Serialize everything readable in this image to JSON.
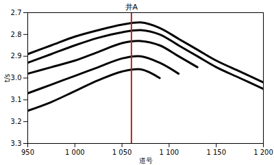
{
  "chart_data": {
    "type": "line",
    "title": "井A",
    "x_label": "道号",
    "y_label": "t/s",
    "x": [
      950,
      975,
      1000,
      1025,
      1050,
      1070,
      1090,
      1110,
      1130,
      1150,
      1175,
      1200
    ],
    "series": [
      {
        "color": "#000000",
        "values": [
          2.89,
          2.85,
          2.81,
          2.78,
          2.755,
          2.745,
          2.77,
          2.82,
          2.87,
          2.92,
          2.97,
          3.02
        ]
      },
      {
        "color": "#000000",
        "values": [
          2.93,
          2.89,
          2.85,
          2.815,
          2.79,
          2.78,
          2.8,
          2.85,
          2.9,
          2.95,
          3.0,
          3.05
        ]
      },
      {
        "color": "#000000",
        "values": [
          2.98,
          2.95,
          2.92,
          2.88,
          2.84,
          2.83,
          2.85,
          2.9,
          2.95,
          null,
          null,
          null
        ]
      },
      {
        "color": "#000000",
        "values": [
          3.07,
          3.03,
          2.99,
          2.95,
          2.91,
          2.9,
          2.93,
          2.98,
          null,
          null,
          null,
          null
        ]
      },
      {
        "color": "#000000",
        "values": [
          3.15,
          3.11,
          3.06,
          3.01,
          2.97,
          2.96,
          3.0,
          null,
          null,
          null,
          null,
          null
        ]
      }
    ],
    "well": {
      "label": "井A",
      "trace": 1060,
      "color": "#b22222"
    },
    "xlim": [
      950,
      1200
    ],
    "xticks": [
      950,
      {
        "value": 1000,
        "label": "1 000"
      },
      {
        "value": 1050,
        "label": "1 050"
      },
      {
        "value": 1100,
        "label": "1 100"
      },
      {
        "value": 1150,
        "label": "1 150"
      },
      {
        "value": 1200,
        "label": "1 200"
      }
    ],
    "ylim": [
      2.7,
      3.3
    ],
    "yticks": [
      2.7,
      2.8,
      2.9,
      {
        "value": 3,
        "label": "3.0"
      },
      3.1,
      3.2,
      3.3
    ],
    "grid": false
  }
}
